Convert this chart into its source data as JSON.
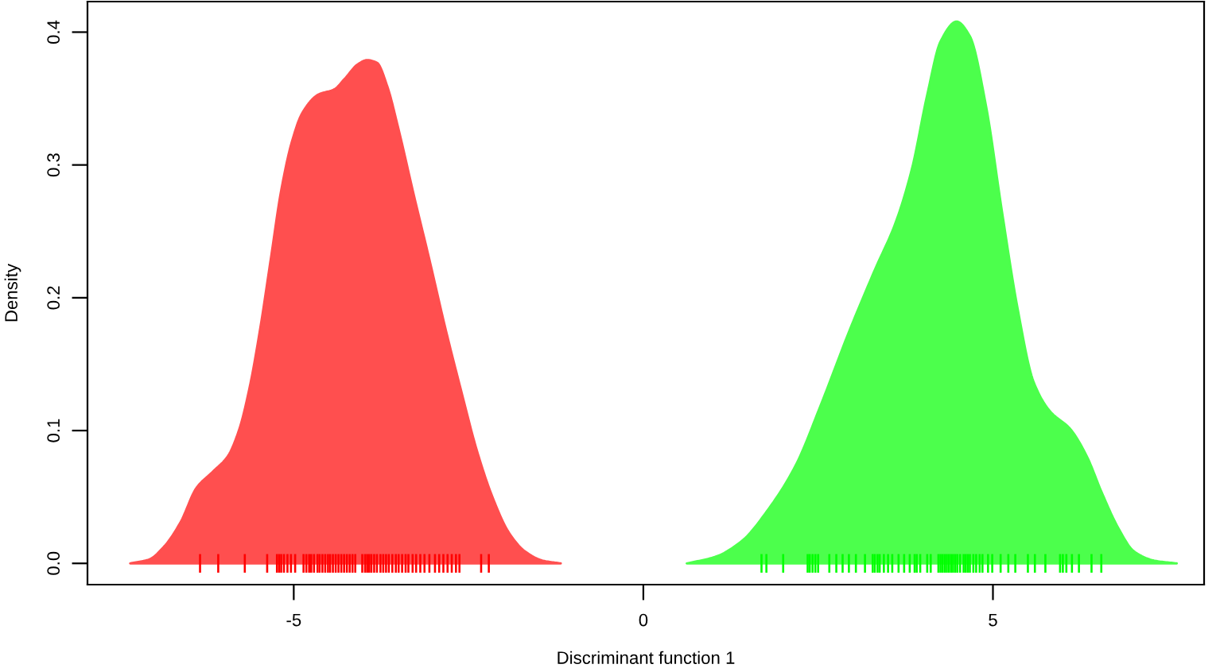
{
  "chart_data": {
    "type": "area",
    "xlabel": "Discriminant function 1",
    "ylabel": "Density",
    "xlim": [
      -7.95,
      8.02
    ],
    "ylim": [
      -0.016,
      0.423
    ],
    "xticks": [
      -5,
      0,
      5
    ],
    "yticks": [
      {
        "value": 0,
        "label": "0.0"
      },
      0.1,
      0.2,
      0.3,
      0.4
    ],
    "grid": false,
    "series": [
      {
        "color": "#ff4f4f",
        "x": [
          -7.34,
          -7.07,
          -6.85,
          -6.62,
          -6.39,
          -6.16,
          -5.94,
          -5.78,
          -5.63,
          -5.48,
          -5.33,
          -5.18,
          -5.03,
          -4.88,
          -4.65,
          -4.42,
          -4.27,
          -4.08,
          -3.95,
          -3.81,
          -3.66,
          -3.51,
          -3.28,
          -3.06,
          -2.83,
          -2.6,
          -2.38,
          -2.15,
          -1.92,
          -1.69,
          -1.43,
          -1.18
        ],
        "values": [
          0,
          0.003,
          0.013,
          0.031,
          0.057,
          0.069,
          0.081,
          0.101,
          0.133,
          0.177,
          0.229,
          0.281,
          0.317,
          0.339,
          0.353,
          0.357,
          0.365,
          0.376,
          0.379,
          0.377,
          0.359,
          0.329,
          0.277,
          0.229,
          0.177,
          0.129,
          0.085,
          0.049,
          0.023,
          0.009,
          0.002,
          0
        ]
      },
      {
        "color": "#4cff4c",
        "x": [
          0.62,
          1.03,
          1.41,
          1.79,
          2.17,
          2.55,
          2.93,
          3.31,
          3.61,
          3.84,
          4.06,
          4.25,
          4.48,
          4.67,
          4.9,
          5.13,
          5.35,
          5.58,
          5.81,
          6.11,
          6.34,
          6.56,
          6.79,
          7.02,
          7.32,
          7.63
        ],
        "values": [
          0,
          0.005,
          0.017,
          0.041,
          0.073,
          0.121,
          0.173,
          0.221,
          0.257,
          0.297,
          0.353,
          0.393,
          0.408,
          0.397,
          0.345,
          0.265,
          0.193,
          0.137,
          0.115,
          0.101,
          0.081,
          0.053,
          0.027,
          0.009,
          0.002,
          0
        ]
      },
      {
        "type": "bar",
        "color": "#ff0000",
        "x": [
          -6.34,
          -6.08,
          -5.7,
          -5.38,
          -5.24,
          -5.21,
          -5.18,
          -5.14,
          -5.09,
          -5.04,
          -4.98,
          -4.86,
          -4.82,
          -4.78,
          -4.75,
          -4.71,
          -4.66,
          -4.63,
          -4.59,
          -4.55,
          -4.51,
          -4.48,
          -4.44,
          -4.4,
          -4.36,
          -4.32,
          -4.28,
          -4.24,
          -4.2,
          -4.16,
          -4.12,
          -4.02,
          -3.98,
          -3.95,
          -3.92,
          -3.89,
          -3.85,
          -3.81,
          -3.76,
          -3.72,
          -3.68,
          -3.64,
          -3.59,
          -3.54,
          -3.5,
          -3.45,
          -3.4,
          -3.36,
          -3.3,
          -3.25,
          -3.19,
          -3.13,
          -3.06,
          -2.98,
          -2.92,
          -2.86,
          -2.8,
          -2.74,
          -2.68,
          -2.63,
          -2.32,
          -2.21
        ],
        "base": [
          -0.007,
          -0.007,
          -0.007,
          -0.007,
          -0.007,
          -0.007,
          -0.007,
          -0.007,
          -0.007,
          -0.007,
          -0.007,
          -0.007,
          -0.007,
          -0.007,
          -0.007,
          -0.007,
          -0.007,
          -0.007,
          -0.007,
          -0.007,
          -0.007,
          -0.007,
          -0.007,
          -0.007,
          -0.007,
          -0.007,
          -0.007,
          -0.007,
          -0.007,
          -0.007,
          -0.007,
          -0.007,
          -0.007,
          -0.007,
          -0.007,
          -0.007,
          -0.007,
          -0.007,
          -0.007,
          -0.007,
          -0.007,
          -0.007,
          -0.007,
          -0.007,
          -0.007,
          -0.007,
          -0.007,
          -0.007,
          -0.007,
          -0.007,
          -0.007,
          -0.007,
          -0.007,
          -0.007,
          -0.007,
          -0.007,
          -0.007,
          -0.007,
          -0.007,
          -0.007,
          -0.007,
          -0.007
        ],
        "values": [
          0.014,
          0.014,
          0.014,
          0.014,
          0.014,
          0.014,
          0.014,
          0.014,
          0.014,
          0.014,
          0.014,
          0.014,
          0.014,
          0.014,
          0.014,
          0.014,
          0.014,
          0.014,
          0.014,
          0.014,
          0.014,
          0.014,
          0.014,
          0.014,
          0.014,
          0.014,
          0.014,
          0.014,
          0.014,
          0.014,
          0.014,
          0.014,
          0.014,
          0.014,
          0.014,
          0.014,
          0.014,
          0.014,
          0.014,
          0.014,
          0.014,
          0.014,
          0.014,
          0.014,
          0.014,
          0.014,
          0.014,
          0.014,
          0.014,
          0.014,
          0.014,
          0.014,
          0.014,
          0.014,
          0.014,
          0.014,
          0.014,
          0.014,
          0.014,
          0.014,
          0.014,
          0.014
        ]
      },
      {
        "type": "bar",
        "color": "#00ff00",
        "x": [
          1.69,
          1.76,
          2.0,
          2.35,
          2.38,
          2.42,
          2.46,
          2.5,
          2.66,
          2.76,
          2.85,
          2.94,
          3.04,
          3.17,
          3.28,
          3.31,
          3.35,
          3.38,
          3.44,
          3.5,
          3.56,
          3.65,
          3.73,
          3.81,
          3.88,
          3.91,
          3.96,
          4.06,
          4.11,
          4.22,
          4.25,
          4.28,
          4.31,
          4.34,
          4.37,
          4.4,
          4.43,
          4.46,
          4.49,
          4.53,
          4.58,
          4.61,
          4.64,
          4.67,
          4.72,
          4.76,
          4.81,
          4.85,
          4.93,
          4.99,
          5.11,
          5.22,
          5.32,
          5.5,
          5.6,
          5.75,
          5.96,
          6.0,
          6.05,
          6.13,
          6.23,
          6.41,
          6.55
        ],
        "base": [
          -0.007,
          -0.007,
          -0.007,
          -0.007,
          -0.007,
          -0.007,
          -0.007,
          -0.007,
          -0.007,
          -0.007,
          -0.007,
          -0.007,
          -0.007,
          -0.007,
          -0.007,
          -0.007,
          -0.007,
          -0.007,
          -0.007,
          -0.007,
          -0.007,
          -0.007,
          -0.007,
          -0.007,
          -0.007,
          -0.007,
          -0.007,
          -0.007,
          -0.007,
          -0.007,
          -0.007,
          -0.007,
          -0.007,
          -0.007,
          -0.007,
          -0.007,
          -0.007,
          -0.007,
          -0.007,
          -0.007,
          -0.007,
          -0.007,
          -0.007,
          -0.007,
          -0.007,
          -0.007,
          -0.007,
          -0.007,
          -0.007,
          -0.007,
          -0.007,
          -0.007,
          -0.007,
          -0.007,
          -0.007,
          -0.007,
          -0.007,
          -0.007,
          -0.007,
          -0.007,
          -0.007,
          -0.007,
          -0.007
        ],
        "values": [
          0.014,
          0.014,
          0.014,
          0.014,
          0.014,
          0.014,
          0.014,
          0.014,
          0.014,
          0.014,
          0.014,
          0.014,
          0.014,
          0.014,
          0.014,
          0.014,
          0.014,
          0.014,
          0.014,
          0.014,
          0.014,
          0.014,
          0.014,
          0.014,
          0.014,
          0.014,
          0.014,
          0.014,
          0.014,
          0.014,
          0.014,
          0.014,
          0.014,
          0.014,
          0.014,
          0.014,
          0.014,
          0.014,
          0.014,
          0.014,
          0.014,
          0.014,
          0.014,
          0.014,
          0.014,
          0.014,
          0.014,
          0.014,
          0.014,
          0.014,
          0.014,
          0.014,
          0.014,
          0.014,
          0.014,
          0.014,
          0.014,
          0.014,
          0.014,
          0.014,
          0.014,
          0.014,
          0.014
        ]
      }
    ]
  }
}
